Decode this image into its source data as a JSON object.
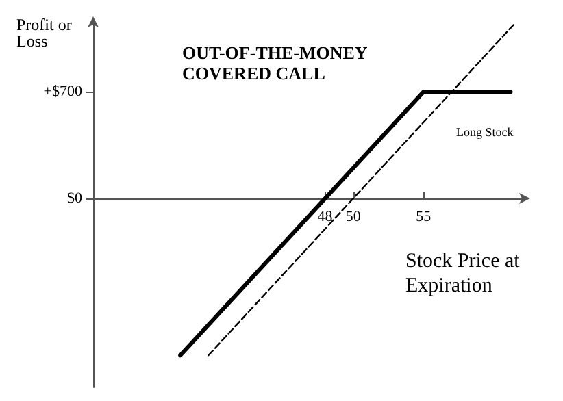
{
  "chart_data": {
    "type": "line",
    "title": "OUT-OF-THE-MONEY\nCOVERED CALL",
    "xlabel": "Stock Price at\nExpiration",
    "ylabel": "Profit or\nLoss",
    "series": [
      {
        "color": "#000000",
        "line_style": "solid",
        "x": [
          37.7,
          48,
          55,
          61.2
        ],
        "values": [
          -1030,
          0,
          700,
          700
        ]
      },
      {
        "name": "Long Stock",
        "color": "#000000",
        "line_style": "dashed",
        "x": [
          39.7,
          50,
          61.4
        ],
        "values": [
          -1030,
          0,
          1140
        ]
      }
    ],
    "xlim": [
      31.5,
      62.2
    ],
    "ylim": [
      -1240,
      1160
    ],
    "xticks": [
      48,
      50,
      55
    ],
    "yticks": [
      {
        "value": 0,
        "label": "$0"
      },
      {
        "value": 700,
        "label": "+$700"
      }
    ],
    "grid": false,
    "legend": false,
    "marker": "none"
  }
}
